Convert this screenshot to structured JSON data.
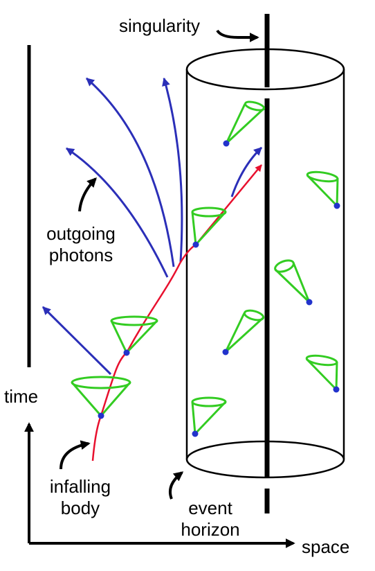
{
  "labels": {
    "singularity": "singularity",
    "outgoing_line1": "outgoing",
    "outgoing_line2": "photons",
    "time": "time",
    "infalling_line1": "infalling",
    "infalling_line2": "body",
    "event_line1": "event",
    "event_line2": "horizon",
    "space": "space"
  },
  "colors": {
    "worldline": "#e8102e",
    "photon": "#2b2fb8",
    "light_cone": "#33cc22",
    "point": "#2233cc",
    "ink": "#000000"
  }
}
